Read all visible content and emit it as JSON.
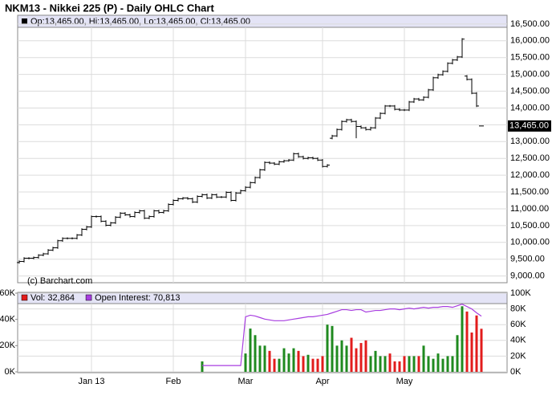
{
  "chart_data": {
    "type": "ohlc",
    "title": "NKM13 - Nikkei 225 (P) - Daily OHLC Chart",
    "info": "Op:13,465.00, Hi:13,465.00, Lo:13,465.00, Cl:13,465.00",
    "source": "(c) Barchart.com",
    "color": "#000000",
    "grid": true,
    "categories": [
      null,
      null,
      null,
      null,
      null,
      null,
      null,
      null,
      null,
      null,
      null,
      null,
      null,
      null,
      null,
      "Jan 13",
      null,
      null,
      null,
      null,
      null,
      null,
      null,
      null,
      null,
      null,
      null,
      null,
      null,
      null,
      null,
      null,
      "Feb",
      null,
      null,
      null,
      null,
      null,
      null,
      null,
      null,
      null,
      null,
      null,
      null,
      null,
      null,
      "Mar",
      null,
      null,
      null,
      null,
      null,
      null,
      null,
      null,
      null,
      null,
      null,
      null,
      null,
      null,
      null,
      "Apr",
      null,
      null,
      null,
      null,
      null,
      null,
      null,
      null,
      null,
      null,
      null,
      null,
      null,
      null,
      null,
      null,
      "May",
      null,
      null,
      null,
      null,
      null,
      null,
      null,
      null,
      null,
      null,
      null,
      null,
      null,
      null,
      null,
      null
    ],
    "open": [
      9400,
      9433,
      9530,
      9530,
      9550,
      9620,
      9660,
      9770,
      9840,
      10050,
      10120,
      10120,
      10120,
      10220,
      10390,
      10460,
      10770,
      10770,
      10630,
      10510,
      10580,
      10750,
      10870,
      10820,
      10770,
      10890,
      10940,
      10720,
      10770,
      10940,
      10890,
      10940,
      11130,
      11250,
      11300,
      11320,
      11300,
      11200,
      11370,
      11420,
      11320,
      11420,
      11350,
      11350,
      11490,
      11250,
      11470,
      11540,
      11640,
      11780,
      11930,
      12160,
      12380,
      12360,
      12330,
      12400,
      12430,
      12450,
      12640,
      12550,
      12500,
      12520,
      12500,
      12450,
      12260,
      13100,
      13170,
      13360,
      13600,
      13650,
      13600,
      13450,
      13410,
      13360,
      13410,
      13700,
      13840,
      14060,
      14060,
      13960,
      13940,
      13940,
      14180,
      14270,
      14240,
      14320,
      14540,
      14900,
      14990,
      15090,
      15330,
      15430,
      15520,
      14950,
      14850,
      14440,
      13465
    ],
    "high": [
      9463,
      9560,
      9560,
      9580,
      9650,
      9690,
      9800,
      9870,
      10080,
      10150,
      10150,
      10150,
      10250,
      10420,
      10490,
      10800,
      10800,
      10800,
      10660,
      10610,
      10780,
      10900,
      10900,
      10850,
      10920,
      10970,
      10970,
      10800,
      10970,
      10970,
      10970,
      11160,
      11280,
      11330,
      11350,
      11350,
      11330,
      11400,
      11450,
      11450,
      11450,
      11450,
      11380,
      11520,
      11520,
      11500,
      11570,
      11670,
      11810,
      11960,
      12190,
      12410,
      12410,
      12390,
      12430,
      12460,
      12480,
      12670,
      12670,
      12580,
      12550,
      12550,
      12530,
      12480,
      12330,
      13200,
      13390,
      13630,
      13680,
      13680,
      13630,
      13480,
      13440,
      13440,
      13730,
      13870,
      14090,
      14090,
      14090,
      13990,
      13970,
      14210,
      14300,
      14300,
      14350,
      14570,
      14930,
      15020,
      15120,
      15360,
      15460,
      15550,
      16080,
      14980,
      14880,
      14470,
      13465
    ],
    "low": [
      9370,
      9403,
      9500,
      9500,
      9520,
      9590,
      9630,
      9740,
      9810,
      10020,
      10090,
      10090,
      10090,
      10190,
      10360,
      10430,
      10740,
      10600,
      10480,
      10480,
      10550,
      10720,
      10790,
      10740,
      10740,
      10860,
      10690,
      10690,
      10740,
      10860,
      10860,
      10910,
      11100,
      11220,
      11270,
      11270,
      11170,
      11170,
      11340,
      11290,
      11290,
      11320,
      11320,
      11320,
      11220,
      11220,
      11440,
      11510,
      11610,
      11750,
      11900,
      12130,
      12330,
      12300,
      12300,
      12370,
      12400,
      12420,
      12520,
      12470,
      12470,
      12470,
      12420,
      12230,
      12230,
      13070,
      13140,
      13330,
      13570,
      13570,
      13100,
      13380,
      13330,
      13330,
      13380,
      13670,
      13810,
      14030,
      13930,
      13910,
      13910,
      13910,
      14150,
      14210,
      14210,
      14290,
      14510,
      14870,
      14960,
      15060,
      15300,
      15400,
      15490,
      14820,
      14410,
      14030,
      13465
    ],
    "close": [
      9433,
      9530,
      9530,
      9550,
      9620,
      9660,
      9770,
      9840,
      10050,
      10120,
      10120,
      10120,
      10220,
      10390,
      10460,
      10770,
      10770,
      10630,
      10510,
      10580,
      10750,
      10870,
      10820,
      10770,
      10890,
      10940,
      10720,
      10770,
      10940,
      10890,
      10940,
      11130,
      11250,
      11300,
      11320,
      11300,
      11200,
      11370,
      11420,
      11320,
      11420,
      11350,
      11350,
      11490,
      11250,
      11470,
      11540,
      11640,
      11780,
      11930,
      12160,
      12380,
      12360,
      12330,
      12400,
      12430,
      12450,
      12640,
      12550,
      12500,
      12520,
      12500,
      12450,
      12260,
      12300,
      13170,
      13360,
      13600,
      13650,
      13600,
      13450,
      13410,
      13360,
      13410,
      13700,
      13840,
      14060,
      14060,
      13960,
      13940,
      13940,
      14180,
      14270,
      14240,
      14320,
      14540,
      14900,
      14990,
      15090,
      15330,
      15430,
      15520,
      16050,
      14850,
      14440,
      14060,
      13465
    ],
    "ylim": [
      8800,
      16760
    ],
    "yticks": [
      {
        "value": 9000,
        "label": "9,000.00"
      },
      {
        "value": 9500,
        "label": "9,500.00"
      },
      {
        "value": 10000,
        "label": "10,000.00"
      },
      {
        "value": 10500,
        "label": "10,500.00"
      },
      {
        "value": 11000,
        "label": "11,000.00"
      },
      {
        "value": 11500,
        "label": "11,500.00"
      },
      {
        "value": 12000,
        "label": "12,000.00"
      },
      {
        "value": 12500,
        "label": "12,500.00"
      },
      {
        "value": 13000,
        "label": "13,000.00"
      },
      {
        "value": 13500,
        "label": "13,500.00"
      },
      {
        "value": 14000,
        "label": "14,000.00"
      },
      {
        "value": 14500,
        "label": "14,500.00"
      },
      {
        "value": 15000,
        "label": "15,000.00"
      },
      {
        "value": 15500,
        "label": "15,500.00"
      },
      {
        "value": 16000,
        "label": "16,000.00"
      },
      {
        "value": 16500,
        "label": "16,500.00"
      }
    ],
    "last_price": {
      "value": 13465,
      "label": "13,465.00"
    },
    "volume": {
      "up_color": "#1f8a1f",
      "down_color": "#e21c1c",
      "ylim": [
        0,
        60000
      ],
      "yticks": [
        {
          "value": 0,
          "label": "0K"
        },
        {
          "value": 20000,
          "label": "20K"
        },
        {
          "value": 40000,
          "label": "40K"
        },
        {
          "value": 60000,
          "label": "60K"
        }
      ],
      "y2lim": [
        0,
        100000
      ],
      "y2ticks": [
        {
          "value": 0,
          "label": "0K"
        },
        {
          "value": 20000,
          "label": "20K"
        },
        {
          "value": 40000,
          "label": "40K"
        },
        {
          "value": 60000,
          "label": "60K"
        },
        {
          "value": 80000,
          "label": "80K"
        },
        {
          "value": 100000,
          "label": "100K"
        }
      ],
      "series": [
        {
          "name": "Vol: 32,864",
          "color": "#e21c1c",
          "type": "bar",
          "values": [
            null,
            null,
            null,
            null,
            null,
            null,
            null,
            null,
            null,
            null,
            null,
            null,
            null,
            null,
            null,
            null,
            null,
            null,
            null,
            null,
            null,
            null,
            null,
            null,
            null,
            null,
            null,
            null,
            null,
            null,
            null,
            null,
            null,
            null,
            null,
            null,
            null,
            null,
            8000,
            null,
            null,
            null,
            null,
            null,
            null,
            null,
            null,
            14000,
            33000,
            28000,
            20000,
            20000,
            16000,
            10000,
            10000,
            18000,
            14000,
            18000,
            16000,
            12000,
            13000,
            10000,
            10000,
            12000,
            36000,
            35000,
            20000,
            24000,
            20000,
            26000,
            18000,
            22000,
            24000,
            12000,
            16000,
            12000,
            12000,
            14000,
            8000,
            8000,
            12000,
            12000,
            12000,
            12000,
            20000,
            12000,
            10000,
            14000,
            10000,
            12000,
            12000,
            28000,
            50000,
            46000,
            30000,
            43000,
            32864
          ]
        },
        {
          "name": "Open Interest: 70,813",
          "color": "#a83ee0",
          "type": "line",
          "axis": "y2",
          "values": [
            null,
            null,
            null,
            null,
            null,
            null,
            null,
            null,
            null,
            null,
            null,
            null,
            null,
            null,
            null,
            null,
            null,
            null,
            null,
            null,
            null,
            null,
            null,
            null,
            null,
            null,
            null,
            null,
            null,
            null,
            null,
            null,
            null,
            null,
            null,
            null,
            null,
            null,
            8000,
            8000,
            8000,
            8000,
            8000,
            8000,
            8000,
            8000,
            8000,
            70000,
            72000,
            71000,
            69000,
            67000,
            66000,
            65000,
            65000,
            65000,
            66000,
            67000,
            68000,
            69000,
            70000,
            70000,
            71000,
            72000,
            73000,
            75000,
            77000,
            79000,
            79000,
            78000,
            79000,
            79000,
            76000,
            77000,
            78000,
            78000,
            79000,
            80000,
            80000,
            79000,
            80000,
            81000,
            80000,
            81000,
            82000,
            81000,
            82000,
            82000,
            83000,
            83000,
            82000,
            84000,
            86000,
            83000,
            80000,
            75000,
            70813
          ]
        }
      ]
    }
  }
}
